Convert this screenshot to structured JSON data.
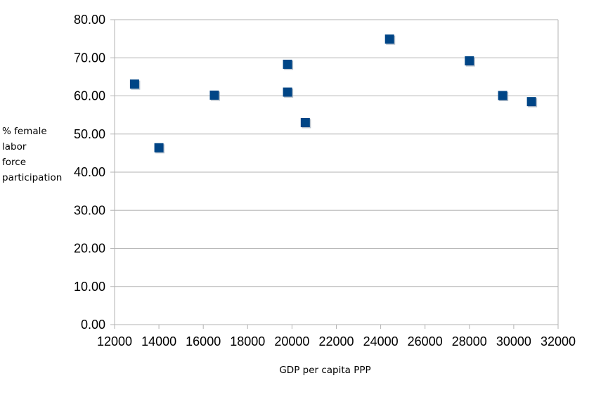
{
  "chart_data": {
    "type": "scatter",
    "title": "",
    "xlabel": "GDP per capita PPP",
    "ylabel_lines": [
      "% female",
      "labor",
      "force",
      "participation"
    ],
    "xlim": [
      12000,
      32000
    ],
    "ylim": [
      0,
      80
    ],
    "x_ticks": [
      12000,
      14000,
      16000,
      18000,
      20000,
      22000,
      24000,
      26000,
      28000,
      30000,
      32000
    ],
    "y_ticks": [
      "0.00",
      "10.00",
      "20.00",
      "30.00",
      "40.00",
      "50.00",
      "60.00",
      "70.00",
      "80.00"
    ],
    "grid": "horizontal",
    "legend": "none",
    "marker_color": "#004586",
    "points": [
      {
        "x": 12900,
        "y": 63.1
      },
      {
        "x": 14000,
        "y": 46.4
      },
      {
        "x": 16500,
        "y": 60.2
      },
      {
        "x": 19800,
        "y": 68.3
      },
      {
        "x": 19800,
        "y": 61.0
      },
      {
        "x": 20600,
        "y": 53.0
      },
      {
        "x": 24400,
        "y": 74.9
      },
      {
        "x": 28000,
        "y": 69.2
      },
      {
        "x": 29500,
        "y": 60.1
      },
      {
        "x": 30800,
        "y": 58.5
      }
    ]
  }
}
